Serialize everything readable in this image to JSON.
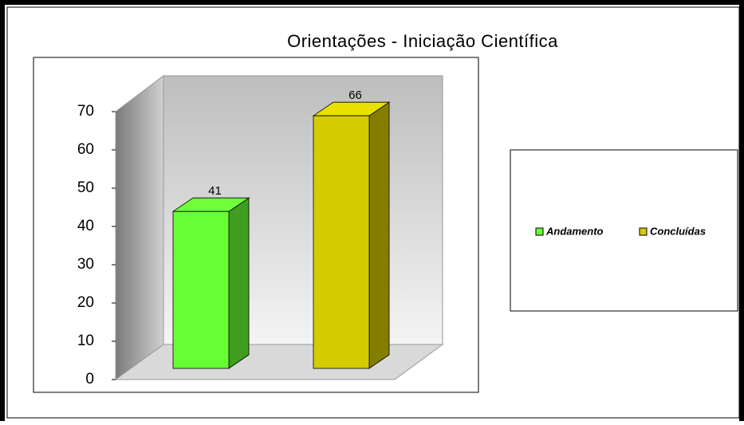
{
  "chart_data": {
    "type": "bar3d",
    "title": "Orientações - Iniciação Científica",
    "categories": [
      null
    ],
    "series": [
      {
        "name": "Andamento",
        "color": "#66ff33",
        "values": [
          41
        ]
      },
      {
        "name": "Concluídas",
        "color": "#d4cc00",
        "values": [
          66
        ]
      }
    ],
    "ylim": [
      0,
      70
    ],
    "yticks": [
      0,
      10,
      20,
      30,
      40,
      50,
      60,
      70
    ],
    "legend": "right"
  }
}
